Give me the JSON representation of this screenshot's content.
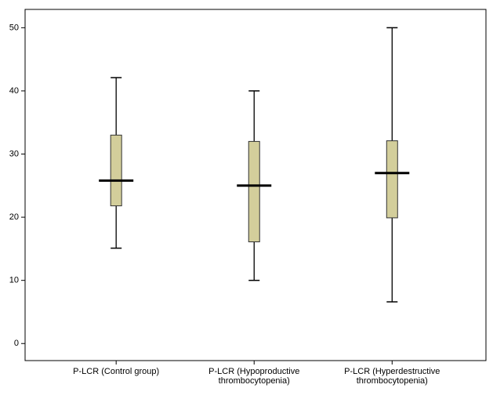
{
  "chart_data": {
    "type": "box",
    "categories": [
      [
        "P-LCR (Control group)"
      ],
      [
        "P-LCR (Hypoproductive",
        "thrombocytopenia)"
      ],
      [
        "P-LCR (Hyperdestructive",
        "thrombocytopenia)"
      ]
    ],
    "boxes": [
      {
        "min": 15.1,
        "q1": 21.8,
        "median": 25.8,
        "q3": 33,
        "max": 42.1
      },
      {
        "min": 10,
        "q1": 16.1,
        "median": 25,
        "q3": 32,
        "max": 40
      },
      {
        "min": 6.6,
        "q1": 19.9,
        "median": 27,
        "q3": 32.1,
        "max": 50
      }
    ],
    "color": "#d3ce9b",
    "ylim": [
      -2.7,
      52.9
    ],
    "yticks": [
      0,
      10,
      20,
      30,
      40,
      50
    ],
    "grid": false
  }
}
